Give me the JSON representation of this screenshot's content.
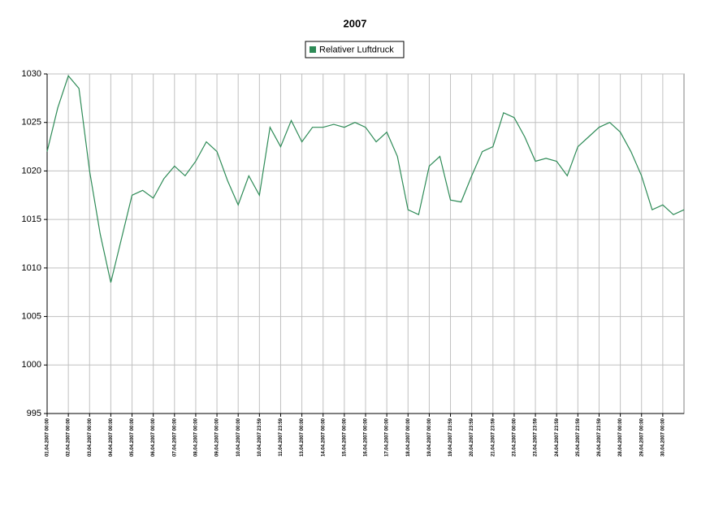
{
  "chart_data": {
    "type": "line",
    "title": "2007",
    "x": [
      0,
      0.5,
      1,
      1.5,
      2,
      2.5,
      3,
      3.5,
      4,
      4.5,
      5,
      5.5,
      6,
      6.5,
      7,
      7.5,
      8,
      8.5,
      9,
      9.5,
      10,
      10.5,
      11,
      11.5,
      12,
      12.5,
      13,
      13.5,
      14,
      14.5,
      15,
      15.5,
      16,
      16.5,
      17,
      17.5,
      18,
      18.5,
      19,
      19.5,
      20,
      20.5,
      21,
      21.5,
      22,
      22.5,
      23,
      23.5,
      24,
      24.5,
      25,
      25.5,
      26,
      26.5,
      27,
      27.5,
      28,
      28.5,
      29,
      29.5,
      30
    ],
    "series": [
      {
        "name": "Relativer Luftdruck",
        "color": "#2e8b57",
        "values": [
          1022,
          1026.5,
          1029.8,
          1028.5,
          1020,
          1013.5,
          1008.5,
          1013,
          1017.5,
          1018,
          1017.2,
          1019.2,
          1020.5,
          1019.5,
          1021,
          1023,
          1022,
          1019,
          1016.5,
          1019.5,
          1017.5,
          1024.5,
          1022.5,
          1025.2,
          1023,
          1024.5,
          1024.5,
          1024.8,
          1024.5,
          1025,
          1024.5,
          1023,
          1024,
          1021.5,
          1016,
          1015.5,
          1020.5,
          1021.5,
          1017,
          1016.8,
          1019.5,
          1022,
          1022.5,
          1026,
          1025.5,
          1023.5,
          1021,
          1021.3,
          1021,
          1019.5,
          1022.5,
          1023.5,
          1024.5,
          1025,
          1024,
          1022,
          1019.5,
          1016,
          1016.5,
          1015.5,
          1016
        ]
      }
    ],
    "xlim": [
      0,
      30
    ],
    "xticks": [
      {
        "value": 0,
        "label": "01.04.2007 00:00"
      },
      {
        "value": 1,
        "label": "02.04.2007 00:00"
      },
      {
        "value": 2,
        "label": "03.04.2007 00:00"
      },
      {
        "value": 3,
        "label": "04.04.2007 00:00"
      },
      {
        "value": 4,
        "label": "05.04.2007 00:00"
      },
      {
        "value": 5,
        "label": "06.04.2007 00:00"
      },
      {
        "value": 6,
        "label": "07.04.2007 00:00"
      },
      {
        "value": 7,
        "label": "08.04.2007 00:00"
      },
      {
        "value": 8,
        "label": "09.04.2007 00:00"
      },
      {
        "value": 9,
        "label": "10.04.2007 00:00"
      },
      {
        "value": 10,
        "label": "10.04.2007 23:59"
      },
      {
        "value": 11,
        "label": "11.04.2007 23:59"
      },
      {
        "value": 12,
        "label": "13.04.2007 00:00"
      },
      {
        "value": 13,
        "label": "14.04.2007 00:00"
      },
      {
        "value": 14,
        "label": "15.04.2007 00:00"
      },
      {
        "value": 15,
        "label": "16.04.2007 00:00"
      },
      {
        "value": 16,
        "label": "17.04.2007 00:00"
      },
      {
        "value": 17,
        "label": "18.04.2007 00:00"
      },
      {
        "value": 18,
        "label": "19.04.2007 00:00"
      },
      {
        "value": 19,
        "label": "19.04.2007 23:59"
      },
      {
        "value": 20,
        "label": "20.04.2007 23:59"
      },
      {
        "value": 21,
        "label": "21.04.2007 23:59"
      },
      {
        "value": 22,
        "label": "23.04.2007 00:00"
      },
      {
        "value": 23,
        "label": "23.04.2007 23:59"
      },
      {
        "value": 24,
        "label": "24.04.2007 23:59"
      },
      {
        "value": 25,
        "label": "25.04.2007 23:59"
      },
      {
        "value": 26,
        "label": "26.04.2007 23:59"
      },
      {
        "value": 27,
        "label": "28.04.2007 00:00"
      },
      {
        "value": 28,
        "label": "29.04.2007 00:00"
      },
      {
        "value": 29,
        "label": "30.04.2007 00:00"
      }
    ],
    "ylim": [
      995,
      1030
    ],
    "yticks": [
      995,
      1000,
      1005,
      1010,
      1015,
      1020,
      1025,
      1030
    ],
    "grid": true
  }
}
